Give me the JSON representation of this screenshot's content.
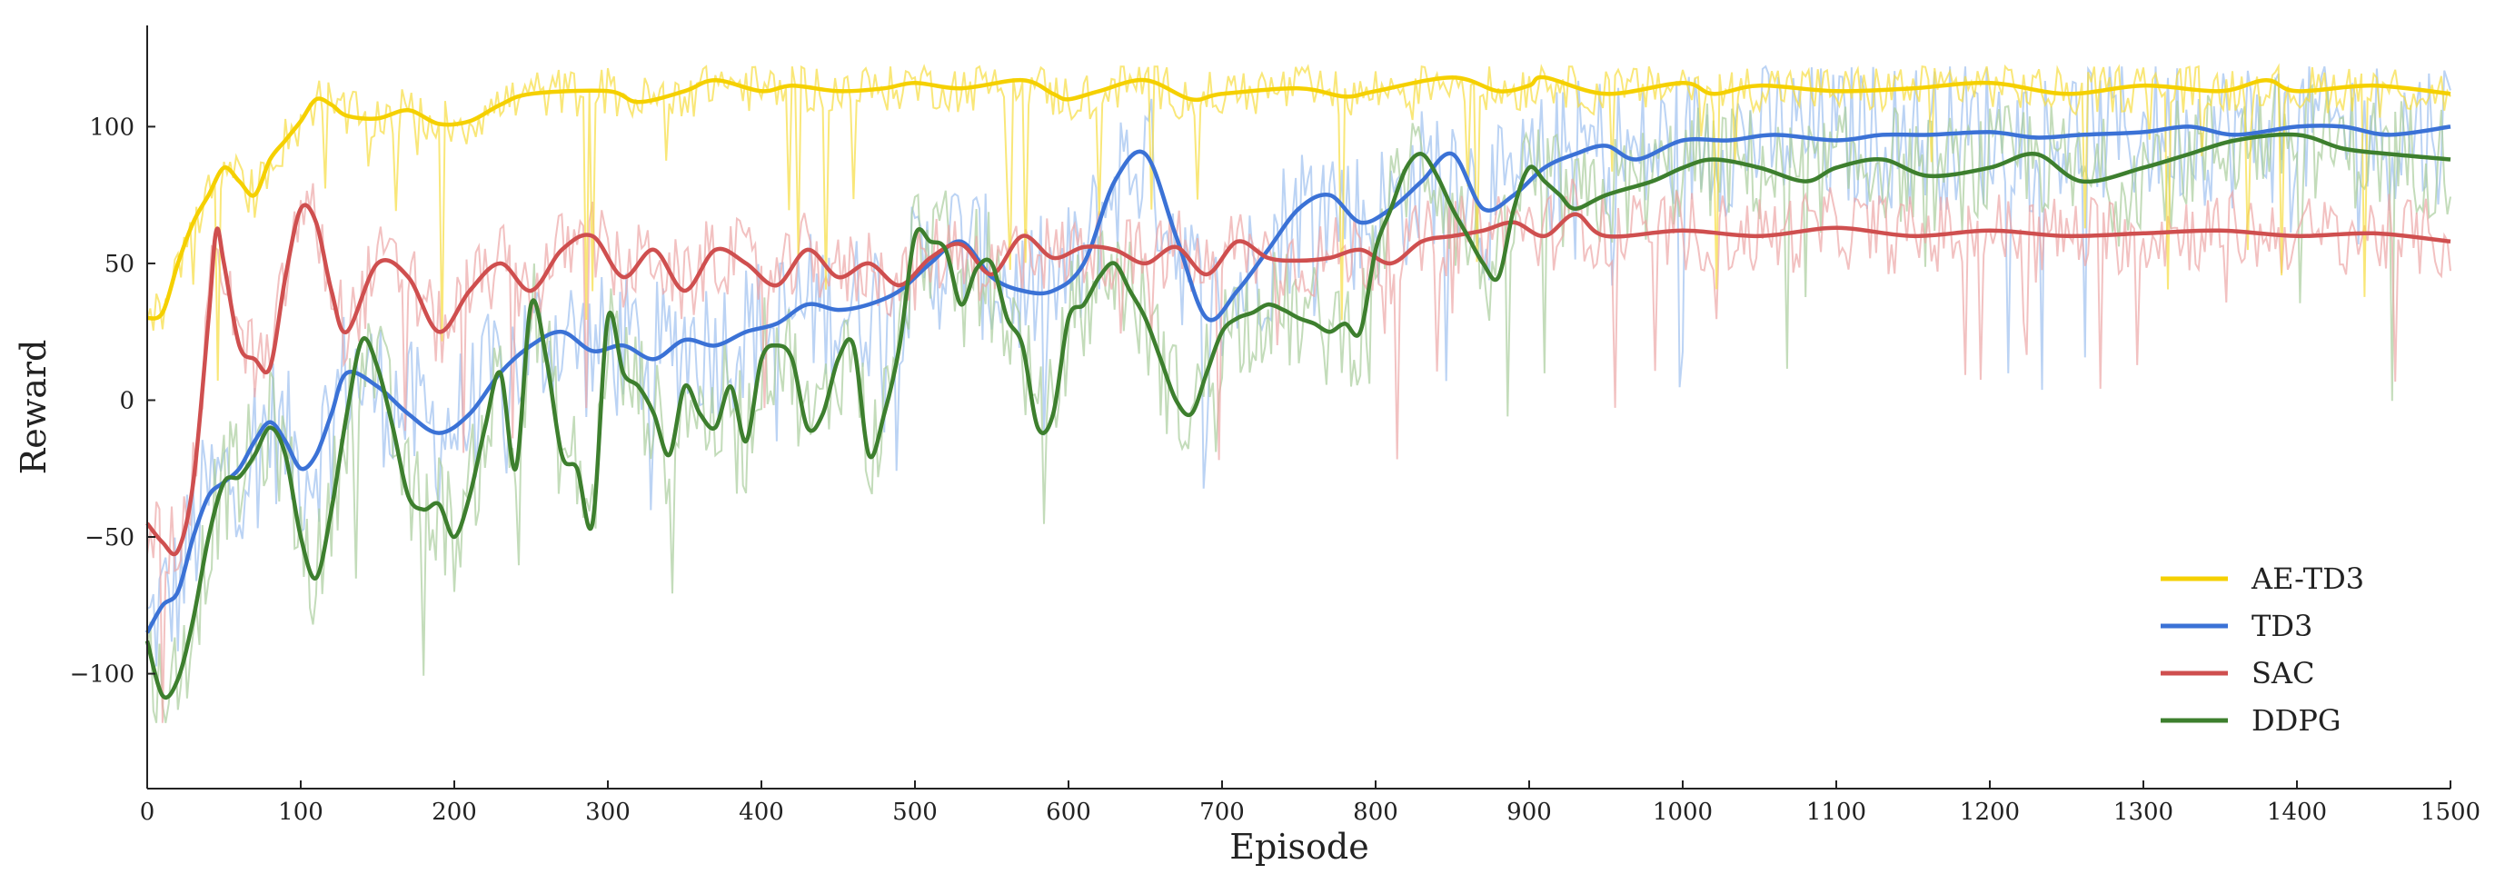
{
  "chart_data": {
    "type": "line",
    "xlabel": "Episode",
    "ylabel": "Reward",
    "xlim": [
      0,
      1500
    ],
    "ylim": [
      -142,
      137
    ],
    "xticks": [
      0,
      100,
      200,
      300,
      400,
      500,
      600,
      700,
      800,
      900,
      1000,
      1100,
      1200,
      1300,
      1400,
      1500
    ],
    "yticks": [
      -100,
      -50,
      0,
      50,
      100
    ],
    "ytick_labels": [
      "−100",
      "−50",
      "0",
      "50",
      "100"
    ],
    "grid": false,
    "legend_position": "lower-right",
    "series": [
      {
        "name": "AE-TD3",
        "color": "#f5d000",
        "raw_color": "#f7dd40",
        "raw_spread": 9,
        "x": [
          0,
          10,
          20,
          30,
          40,
          50,
          60,
          70,
          80,
          90,
          100,
          110,
          120,
          130,
          150,
          170,
          190,
          210,
          230,
          250,
          300,
          320,
          350,
          370,
          400,
          420,
          450,
          480,
          500,
          530,
          570,
          590,
          600,
          620,
          650,
          680,
          700,
          750,
          780,
          800,
          850,
          880,
          900,
          910,
          950,
          1000,
          1020,
          1050,
          1100,
          1150,
          1200,
          1250,
          1300,
          1350,
          1380,
          1400,
          1450,
          1500
        ],
        "y": [
          30,
          32,
          50,
          65,
          75,
          85,
          80,
          75,
          88,
          95,
          102,
          110,
          108,
          104,
          103,
          106,
          101,
          102,
          108,
          112,
          113,
          109,
          113,
          117,
          113,
          115,
          113,
          114,
          116,
          114,
          117,
          112,
          110,
          113,
          117,
          110,
          112,
          114,
          111,
          113,
          118,
          113,
          115,
          118,
          112,
          116,
          112,
          115,
          113,
          114,
          116,
          112,
          115,
          113,
          117,
          113,
          115,
          112
        ]
      },
      {
        "name": "TD3",
        "color": "#3b72d6",
        "raw_color": "#9ec0f0",
        "raw_spread": 28,
        "x": [
          0,
          10,
          20,
          30,
          40,
          50,
          60,
          70,
          80,
          90,
          100,
          110,
          120,
          130,
          150,
          170,
          190,
          210,
          230,
          250,
          270,
          290,
          310,
          330,
          350,
          370,
          390,
          410,
          430,
          450,
          470,
          490,
          510,
          530,
          550,
          570,
          590,
          610,
          630,
          650,
          670,
          690,
          710,
          730,
          750,
          770,
          790,
          810,
          830,
          850,
          870,
          890,
          910,
          930,
          950,
          970,
          1000,
          1030,
          1060,
          1100,
          1130,
          1160,
          1200,
          1230,
          1260,
          1300,
          1330,
          1360,
          1400,
          1430,
          1460,
          1500
        ],
        "y": [
          -85,
          -75,
          -70,
          -50,
          -35,
          -30,
          -25,
          -15,
          -8,
          -15,
          -25,
          -20,
          -5,
          10,
          5,
          -5,
          -12,
          -5,
          10,
          20,
          25,
          18,
          20,
          15,
          22,
          20,
          25,
          28,
          35,
          33,
          35,
          40,
          50,
          58,
          45,
          40,
          40,
          50,
          80,
          90,
          60,
          30,
          40,
          55,
          70,
          75,
          65,
          70,
          80,
          90,
          70,
          75,
          85,
          90,
          93,
          88,
          95,
          95,
          97,
          95,
          97,
          97,
          98,
          96,
          97,
          98,
          100,
          97,
          100,
          100,
          97,
          100
        ]
      },
      {
        "name": "SAC",
        "color": "#cf4f4f",
        "raw_color": "#eda6a6",
        "raw_spread": 15,
        "x": [
          0,
          10,
          20,
          30,
          40,
          45,
          50,
          60,
          70,
          80,
          90,
          100,
          110,
          120,
          130,
          150,
          170,
          190,
          210,
          230,
          250,
          270,
          290,
          310,
          330,
          350,
          370,
          390,
          410,
          430,
          450,
          470,
          490,
          510,
          530,
          550,
          570,
          590,
          610,
          630,
          650,
          670,
          690,
          710,
          730,
          750,
          770,
          790,
          810,
          830,
          850,
          870,
          890,
          910,
          930,
          950,
          1000,
          1050,
          1100,
          1150,
          1200,
          1250,
          1300,
          1350,
          1400,
          1450,
          1500
        ],
        "y": [
          -45,
          -52,
          -55,
          -30,
          30,
          62,
          50,
          20,
          15,
          12,
          45,
          70,
          65,
          40,
          25,
          50,
          45,
          25,
          40,
          50,
          40,
          55,
          60,
          45,
          55,
          40,
          55,
          50,
          42,
          55,
          45,
          50,
          42,
          52,
          57,
          46,
          60,
          52,
          56,
          55,
          50,
          56,
          46,
          58,
          52,
          51,
          52,
          55,
          50,
          58,
          60,
          62,
          65,
          60,
          68,
          60,
          62,
          60,
          63,
          60,
          62,
          60,
          61,
          62,
          60,
          61,
          58
        ]
      },
      {
        "name": "DDPG",
        "color": "#3d7f2e",
        "raw_color": "#a9cd9c",
        "raw_spread": 22,
        "x": [
          0,
          10,
          20,
          30,
          40,
          50,
          60,
          70,
          80,
          90,
          100,
          110,
          120,
          130,
          140,
          150,
          160,
          170,
          180,
          190,
          200,
          210,
          220,
          230,
          240,
          250,
          260,
          270,
          280,
          290,
          300,
          310,
          320,
          330,
          340,
          350,
          360,
          370,
          380,
          390,
          400,
          410,
          420,
          430,
          440,
          450,
          460,
          470,
          480,
          490,
          500,
          510,
          520,
          530,
          540,
          550,
          560,
          570,
          580,
          590,
          600,
          610,
          620,
          630,
          640,
          650,
          660,
          670,
          680,
          690,
          700,
          710,
          720,
          730,
          740,
          750,
          760,
          770,
          780,
          790,
          800,
          810,
          820,
          830,
          840,
          850,
          860,
          870,
          880,
          890,
          900,
          910,
          920,
          930,
          950,
          980,
          1000,
          1020,
          1050,
          1080,
          1100,
          1130,
          1160,
          1200,
          1230,
          1260,
          1300,
          1330,
          1360,
          1400,
          1430,
          1460,
          1500
        ],
        "y": [
          -88,
          -108,
          -102,
          -80,
          -50,
          -30,
          -28,
          -20,
          -10,
          -20,
          -50,
          -65,
          -40,
          -5,
          22,
          12,
          -10,
          -35,
          -40,
          -38,
          -50,
          -35,
          -10,
          10,
          -25,
          35,
          15,
          -20,
          -25,
          -45,
          30,
          10,
          5,
          -5,
          -20,
          5,
          -5,
          -10,
          5,
          -15,
          15,
          20,
          15,
          -10,
          -5,
          15,
          20,
          -20,
          -5,
          20,
          60,
          58,
          55,
          35,
          48,
          50,
          30,
          20,
          -10,
          -5,
          30,
          35,
          45,
          50,
          40,
          30,
          15,
          0,
          -5,
          10,
          25,
          30,
          32,
          35,
          33,
          30,
          28,
          25,
          28,
          25,
          55,
          70,
          85,
          90,
          82,
          70,
          60,
          50,
          45,
          70,
          85,
          80,
          75,
          70,
          75,
          80,
          85,
          88,
          85,
          80,
          85,
          88,
          82,
          85,
          90,
          80,
          85,
          90,
          95,
          97,
          92,
          90,
          88
        ]
      }
    ]
  }
}
